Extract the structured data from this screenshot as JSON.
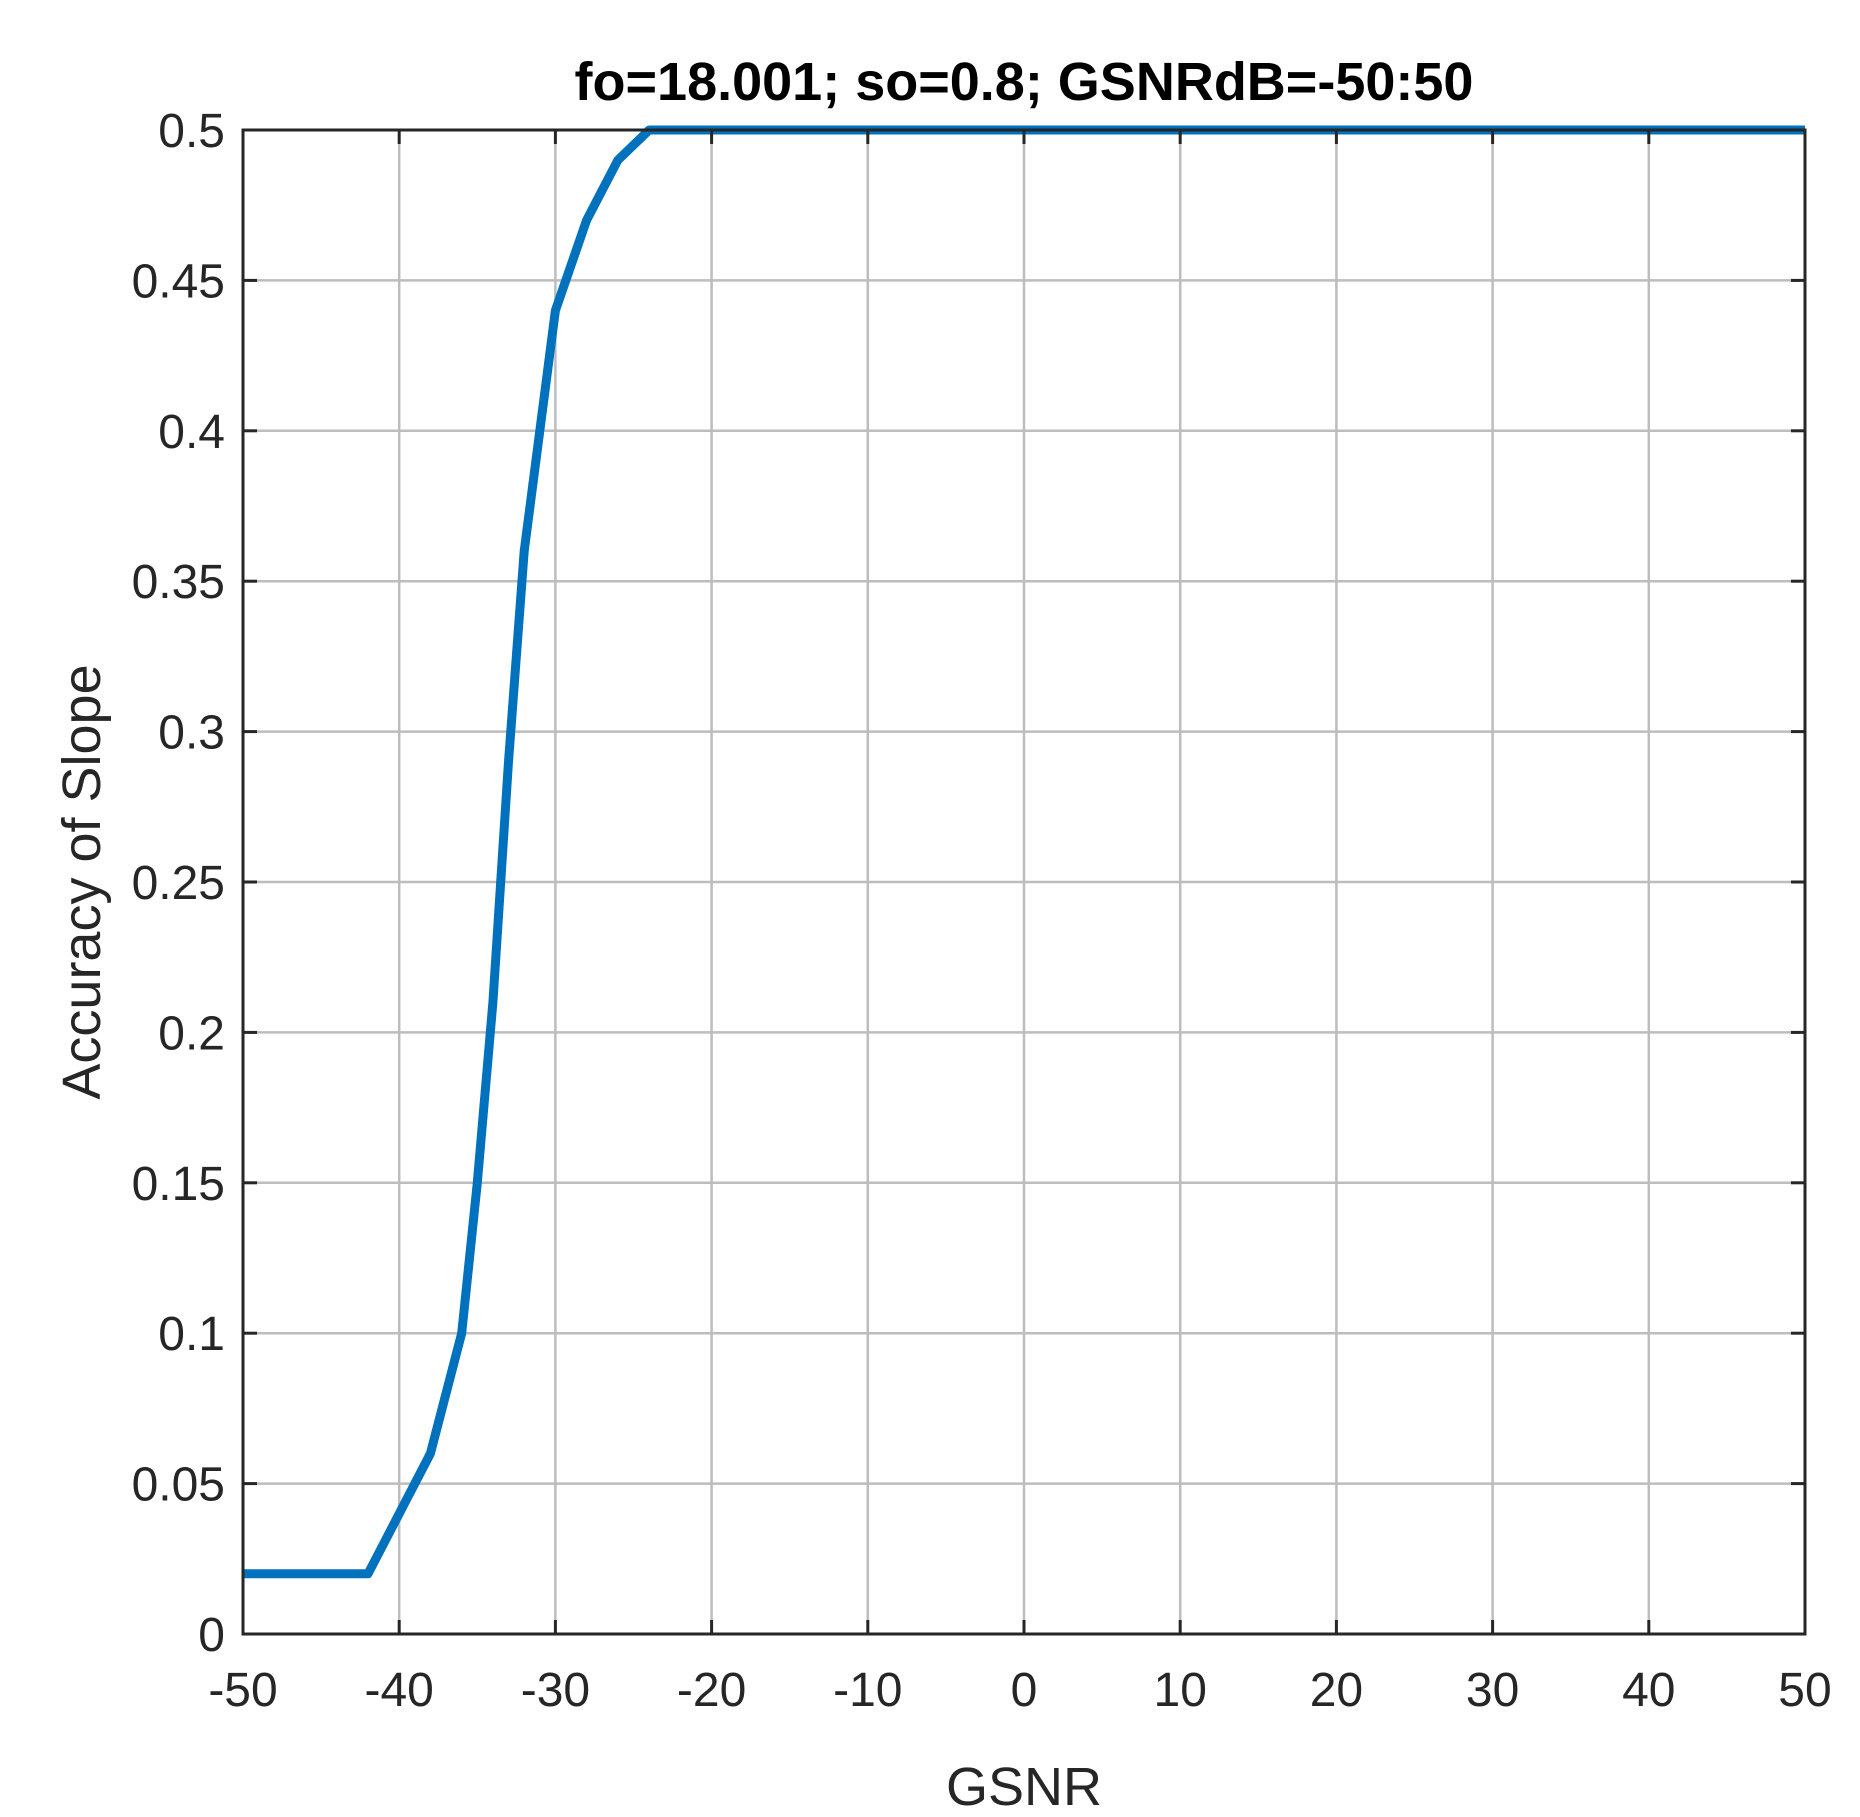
{
  "chart_data": {
    "type": "line",
    "title": "fo=18.001; so=0.8; GSNRdB=-50:50",
    "xlabel": "GSNR",
    "ylabel": "Accuracy of Slope",
    "xlim": [
      -50,
      50
    ],
    "ylim": [
      0,
      0.5
    ],
    "xticks": [
      -50,
      -40,
      -30,
      -20,
      -10,
      0,
      10,
      20,
      30,
      40,
      50
    ],
    "xtick_labels": [
      "-50",
      "-40",
      "-30",
      "-20",
      "-10",
      "0",
      "10",
      "20",
      "30",
      "40",
      "50"
    ],
    "yticks": [
      0,
      0.05,
      0.1,
      0.15,
      0.2,
      0.25,
      0.3,
      0.35,
      0.4,
      0.45,
      0.5
    ],
    "ytick_labels": [
      "0",
      "0.05",
      "0.1",
      "0.15",
      "0.2",
      "0.25",
      "0.3",
      "0.35",
      "0.4",
      "0.45",
      "0.5"
    ],
    "grid": true,
    "series": [
      {
        "color": "#0072BD",
        "x": [
          -50,
          -48,
          -46,
          -44,
          -42,
          -40,
          -38,
          -36,
          -35,
          -34,
          -33,
          -32,
          -31,
          -30,
          -28,
          -26,
          -24,
          -22,
          -20,
          -10,
          0,
          10,
          20,
          30,
          40,
          50
        ],
        "y": [
          0.02,
          0.02,
          0.02,
          0.02,
          0.02,
          0.04,
          0.06,
          0.1,
          0.15,
          0.21,
          0.29,
          0.36,
          0.4,
          0.44,
          0.47,
          0.49,
          0.5,
          0.5,
          0.5,
          0.5,
          0.5,
          0.5,
          0.5,
          0.5,
          0.5,
          0.5
        ]
      }
    ]
  }
}
